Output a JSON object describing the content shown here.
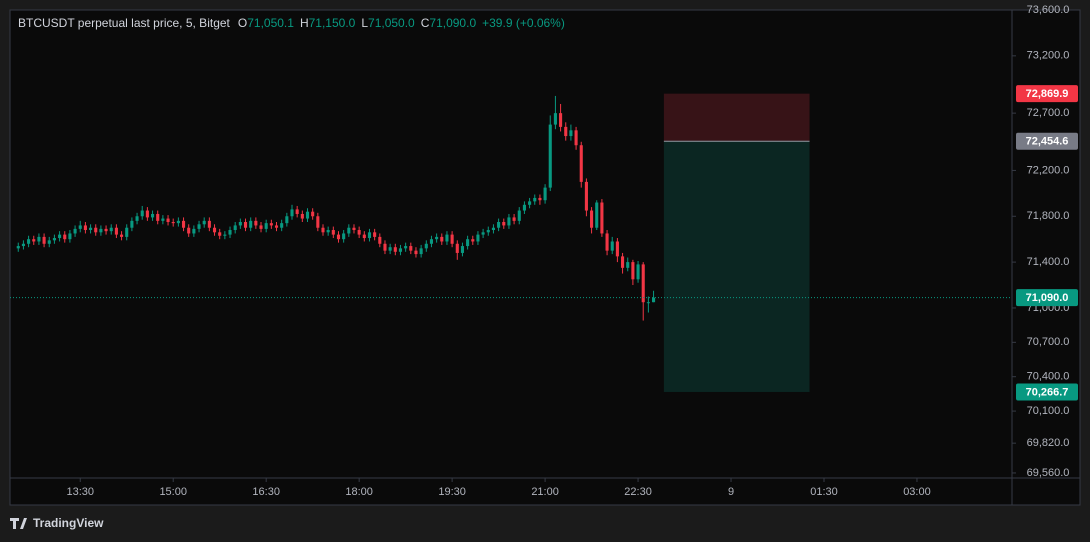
{
  "chart_data": {
    "type": "candlestick",
    "legend": {
      "symbol": "BTCUSDT perpetual last price, 5, Bitget",
      "fields": [
        {
          "key": "O",
          "value": "71,050.1"
        },
        {
          "key": "H",
          "value": "71,150.0"
        },
        {
          "key": "L",
          "value": "71,050.0"
        },
        {
          "key": "C",
          "value": "71,090.0"
        }
      ],
      "change": "+39.9 (+0.06%)"
    },
    "up_color": "#089981",
    "down_color": "#f23645",
    "grid": false,
    "xlim": [
      742,
      1712
    ],
    "xticks": [
      {
        "value": 810,
        "label": "13:30"
      },
      {
        "value": 900,
        "label": "15:00"
      },
      {
        "value": 990,
        "label": "16:30"
      },
      {
        "value": 1080,
        "label": "18:00"
      },
      {
        "value": 1170,
        "label": "19:30"
      },
      {
        "value": 1260,
        "label": "21:00"
      },
      {
        "value": 1350,
        "label": "22:30"
      },
      {
        "value": 1440,
        "label": "9"
      },
      {
        "value": 1530,
        "label": "01:30"
      },
      {
        "value": 1620,
        "label": "03:00"
      }
    ],
    "ylim": [
      69516,
      73600
    ],
    "yticks": [
      {
        "value": 73600,
        "label": "73,600.0"
      },
      {
        "value": 73200,
        "label": "73,200.0"
      },
      {
        "value": 72700,
        "label": "72,700.0"
      },
      {
        "value": 72200,
        "label": "72,200.0"
      },
      {
        "value": 71800,
        "label": "71,800.0"
      },
      {
        "value": 71400,
        "label": "71,400.0"
      },
      {
        "value": 71000,
        "label": "71,000.0"
      },
      {
        "value": 70700,
        "label": "70,700.0"
      },
      {
        "value": 70400,
        "label": "70,400.0"
      },
      {
        "value": 70100,
        "label": "70,100.0"
      },
      {
        "value": 69820,
        "label": "69,820.0"
      },
      {
        "value": 69560,
        "label": "69,560.0"
      }
    ],
    "x": [
      750,
      755,
      760,
      765,
      770,
      775,
      780,
      785,
      790,
      795,
      800,
      805,
      810,
      815,
      820,
      825,
      830,
      835,
      840,
      845,
      850,
      855,
      860,
      865,
      870,
      875,
      880,
      885,
      890,
      895,
      900,
      905,
      910,
      915,
      920,
      925,
      930,
      935,
      940,
      945,
      950,
      955,
      960,
      965,
      970,
      975,
      980,
      985,
      990,
      995,
      1000,
      1005,
      1010,
      1015,
      1020,
      1025,
      1030,
      1035,
      1040,
      1045,
      1050,
      1055,
      1060,
      1065,
      1070,
      1075,
      1080,
      1085,
      1090,
      1095,
      1100,
      1105,
      1110,
      1115,
      1120,
      1125,
      1130,
      1135,
      1140,
      1145,
      1150,
      1155,
      1160,
      1165,
      1170,
      1175,
      1180,
      1185,
      1190,
      1195,
      1200,
      1205,
      1210,
      1215,
      1220,
      1225,
      1230,
      1235,
      1240,
      1245,
      1250,
      1255,
      1260,
      1265,
      1270,
      1275,
      1280,
      1285,
      1290,
      1295,
      1300,
      1305,
      1310,
      1315,
      1320,
      1325,
      1330,
      1335,
      1340,
      1345,
      1350,
      1355,
      1360,
      1365
    ],
    "open": [
      71520,
      71540,
      71560,
      71600,
      71580,
      71620,
      71560,
      71590,
      71610,
      71640,
      71600,
      71650,
      71690,
      71720,
      71680,
      71700,
      71660,
      71690,
      71670,
      71700,
      71640,
      71620,
      71700,
      71760,
      71800,
      71850,
      71790,
      71820,
      71760,
      71780,
      71750,
      71740,
      71760,
      71700,
      71650,
      71690,
      71730,
      71760,
      71700,
      71660,
      71630,
      71640,
      71680,
      71720,
      71750,
      71700,
      71760,
      71720,
      71690,
      71740,
      71720,
      71700,
      71740,
      71800,
      71860,
      71820,
      71780,
      71840,
      71800,
      71700,
      71660,
      71680,
      71640,
      71600,
      71650,
      71700,
      71680,
      71640,
      71610,
      71660,
      71620,
      71560,
      71500,
      71530,
      71490,
      71520,
      71540,
      71500,
      71470,
      71520,
      71560,
      71600,
      71620,
      71580,
      71640,
      71560,
      71480,
      71540,
      71600,
      71580,
      71640,
      71660,
      71680,
      71700,
      71750,
      71720,
      71790,
      71760,
      71850,
      71900,
      71930,
      71960,
      71940,
      72050,
      72600,
      72700,
      72580,
      72500,
      72550,
      72420,
      72100,
      71850,
      71700,
      71920,
      71650,
      71500,
      71580,
      71450,
      71350,
      71400,
      71250,
      71380,
      71050,
      71050.1
    ],
    "high": [
      71570,
      71590,
      71630,
      71630,
      71650,
      71650,
      71620,
      71640,
      71670,
      71670,
      71680,
      71720,
      71760,
      71750,
      71730,
      71730,
      71720,
      71720,
      71730,
      71730,
      71670,
      71730,
      71790,
      71830,
      71890,
      71880,
      71850,
      71850,
      71810,
      71810,
      71780,
      71790,
      71790,
      71730,
      71720,
      71760,
      71790,
      71790,
      71730,
      71690,
      71670,
      71710,
      71750,
      71780,
      71780,
      71790,
      71790,
      71750,
      71770,
      71770,
      71750,
      71770,
      71830,
      71900,
      71890,
      71850,
      71870,
      71870,
      71830,
      71730,
      71710,
      71710,
      71670,
      71680,
      71730,
      71730,
      71710,
      71670,
      71690,
      71690,
      71650,
      71590,
      71560,
      71560,
      71550,
      71570,
      71570,
      71530,
      71550,
      71590,
      71630,
      71650,
      71650,
      71670,
      71670,
      71590,
      71570,
      71630,
      71630,
      71670,
      71690,
      71710,
      71730,
      71780,
      71780,
      71820,
      71820,
      71880,
      71930,
      71960,
      71990,
      71990,
      72080,
      72680,
      72850,
      72780,
      72620,
      72600,
      72580,
      72450,
      72130,
      71880,
      71940,
      71950,
      71680,
      71620,
      71610,
      71480,
      71440,
      71420,
      71410,
      71400,
      71100,
      71150
    ],
    "low": [
      71490,
      71510,
      71530,
      71550,
      71550,
      71530,
      71530,
      71560,
      71580,
      71570,
      71570,
      71620,
      71660,
      71650,
      71650,
      71630,
      71630,
      71640,
      71640,
      71610,
      71590,
      71590,
      71670,
      71730,
      71770,
      71760,
      71760,
      71730,
      71730,
      71720,
      71710,
      71710,
      71670,
      71620,
      71620,
      71660,
      71700,
      71670,
      71630,
      71600,
      71600,
      71610,
      71650,
      71690,
      71670,
      71670,
      71690,
      71660,
      71660,
      71690,
      71670,
      71670,
      71710,
      71770,
      71790,
      71750,
      71750,
      71770,
      71670,
      71630,
      71630,
      71610,
      71570,
      71570,
      71620,
      71650,
      71610,
      71580,
      71580,
      71590,
      71530,
      71470,
      71470,
      71460,
      71460,
      71490,
      71470,
      71440,
      71440,
      71490,
      71530,
      71570,
      71550,
      71550,
      71530,
      71420,
      71450,
      71510,
      71550,
      71550,
      71610,
      71630,
      71650,
      71670,
      71690,
      71690,
      71730,
      71730,
      71820,
      71870,
      71900,
      71900,
      71910,
      72020,
      72560,
      72540,
      72460,
      72460,
      72380,
      72050,
      71800,
      71650,
      71680,
      71620,
      71460,
      71470,
      71400,
      71300,
      71320,
      71200,
      71220,
      70890,
      70960,
      71050
    ],
    "close": [
      71540,
      71560,
      71600,
      71580,
      71620,
      71560,
      71590,
      71610,
      71640,
      71600,
      71650,
      71690,
      71720,
      71680,
      71700,
      71660,
      71690,
      71670,
      71700,
      71640,
      71620,
      71700,
      71760,
      71800,
      71850,
      71790,
      71820,
      71760,
      71780,
      71750,
      71740,
      71760,
      71700,
      71650,
      71690,
      71730,
      71760,
      71700,
      71660,
      71630,
      71640,
      71680,
      71720,
      71750,
      71700,
      71760,
      71720,
      71690,
      71740,
      71720,
      71700,
      71740,
      71800,
      71860,
      71820,
      71780,
      71840,
      71800,
      71700,
      71660,
      71680,
      71640,
      71600,
      71650,
      71700,
      71680,
      71640,
      71610,
      71660,
      71620,
      71560,
      71500,
      71530,
      71490,
      71520,
      71540,
      71500,
      71470,
      71520,
      71560,
      71600,
      71620,
      71580,
      71640,
      71560,
      71480,
      71540,
      71600,
      71580,
      71640,
      71660,
      71680,
      71700,
      71750,
      71720,
      71790,
      71760,
      71850,
      71900,
      71930,
      71960,
      71940,
      72050,
      72600,
      72700,
      72580,
      72500,
      72550,
      72420,
      72100,
      71850,
      71700,
      71920,
      71650,
      71500,
      71580,
      71450,
      71350,
      71400,
      71250,
      71380,
      71050,
      71050.1,
      71090
    ],
    "last_price": {
      "value": 71090,
      "label": "71,090.0",
      "color": "#089981"
    },
    "position": {
      "x": [
        1375,
        1516
      ],
      "stop": {
        "value": 72869.9,
        "label": "72,869.9",
        "color": "#f23645"
      },
      "entry": {
        "value": 72454.6,
        "label": "72,454.6",
        "color": "#787b86"
      },
      "target": {
        "value": 70266.7,
        "label": "70,266.7",
        "color": "#089981"
      }
    }
  },
  "brand": "TradingView"
}
